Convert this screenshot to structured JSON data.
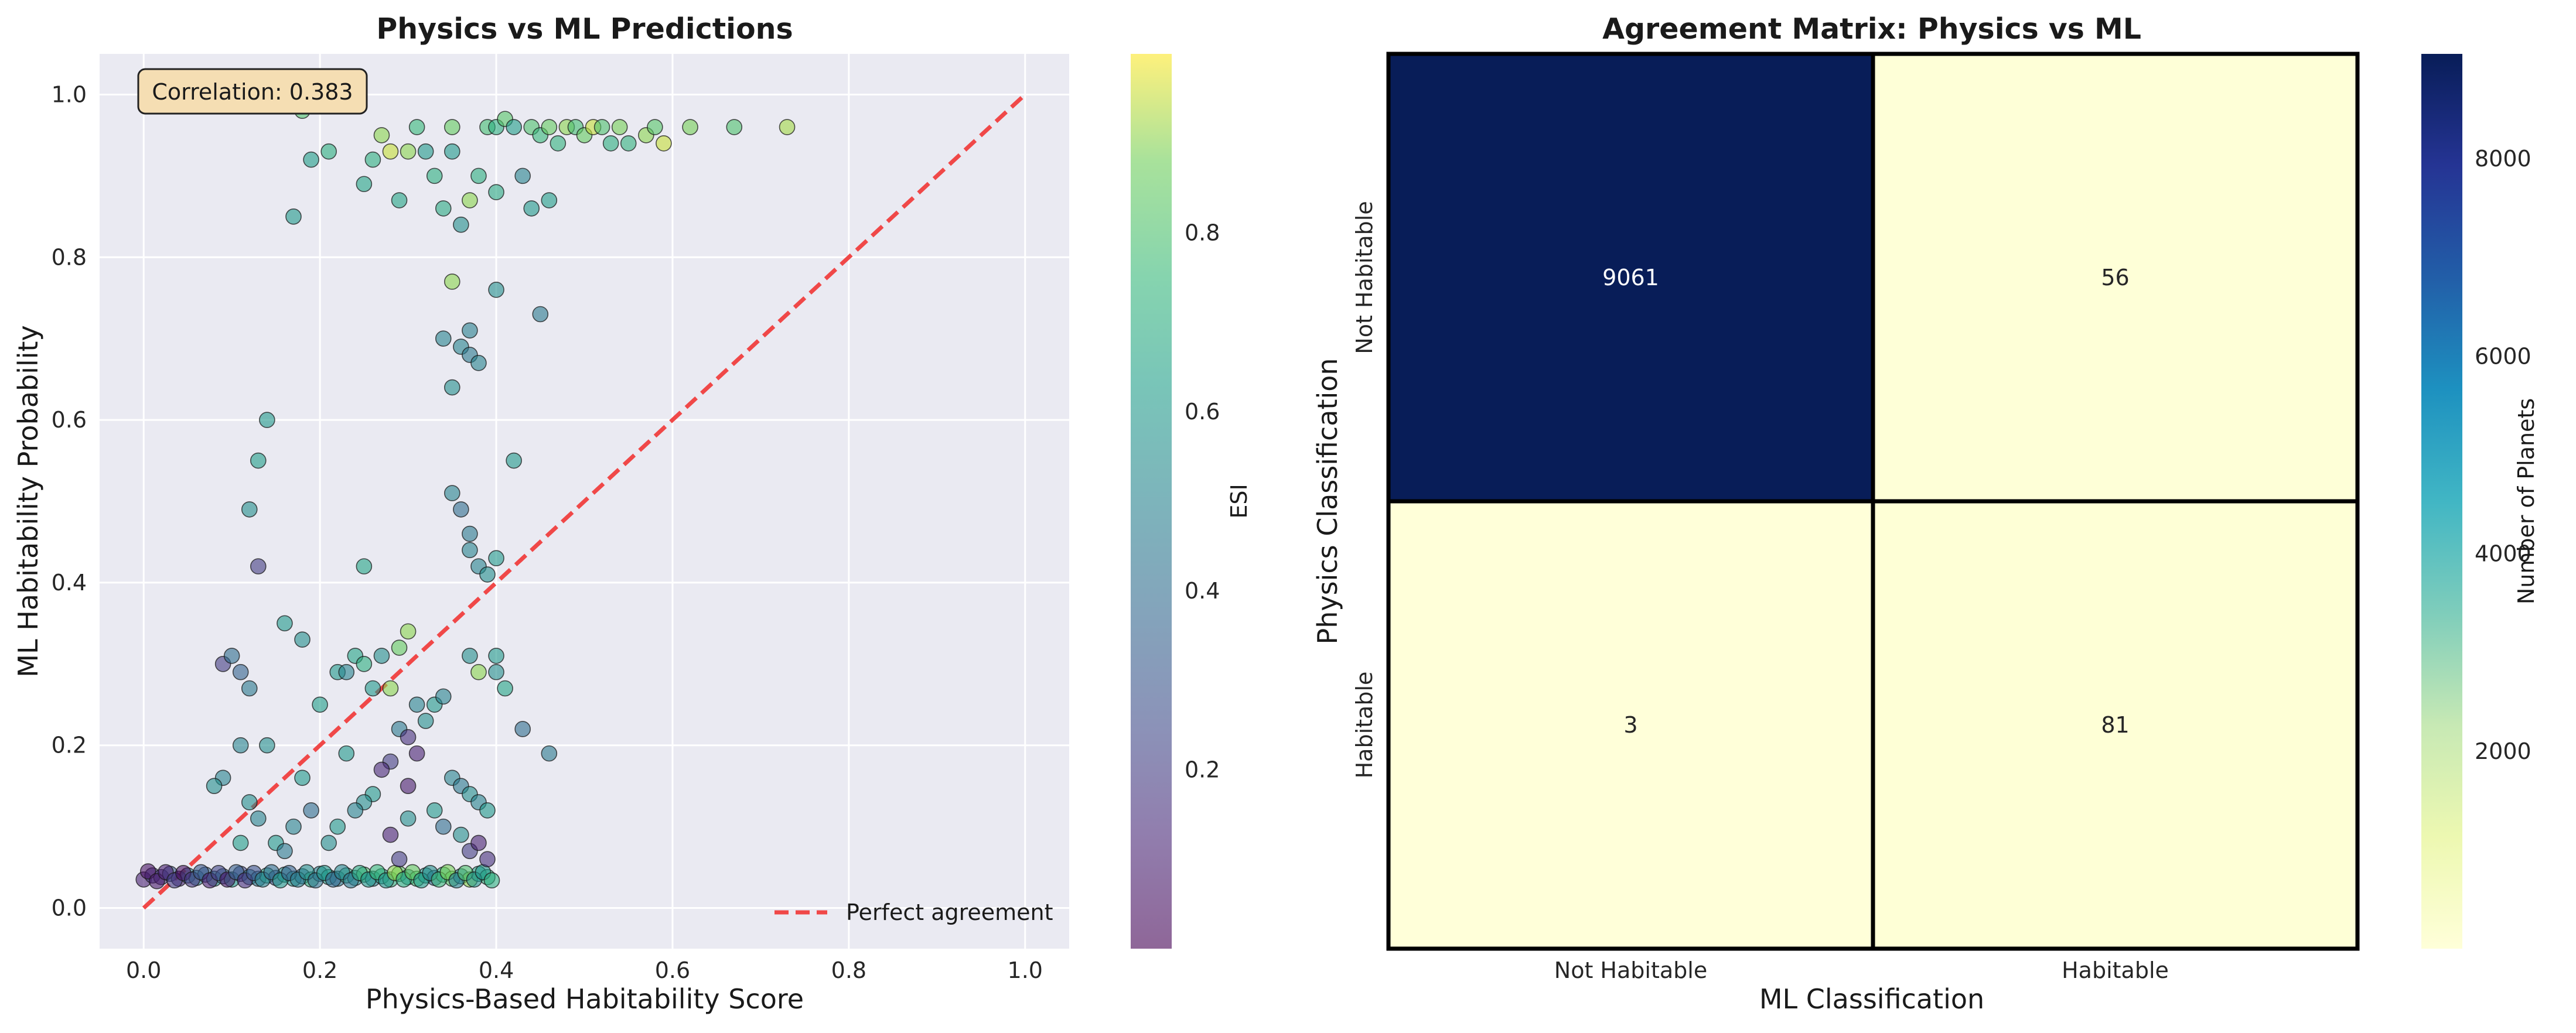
{
  "chart_data": [
    {
      "type": "scatter",
      "title": "Physics vs ML Predictions",
      "xlabel": "Physics-Based Habitability Score",
      "ylabel": "ML Habitability Probability",
      "xlim": [
        -0.05,
        1.05
      ],
      "ylim": [
        -0.05,
        1.05
      ],
      "xticks": [
        "0.0",
        "0.2",
        "0.4",
        "0.6",
        "0.8",
        "1.0"
      ],
      "yticks": [
        "0.0",
        "0.2",
        "0.4",
        "0.6",
        "0.8",
        "1.0"
      ],
      "grid": true,
      "annotation": "Correlation: 0.383",
      "legend": {
        "placement": "lower-right",
        "entries": [
          "Perfect agreement"
        ]
      },
      "reference_line": {
        "from": [
          0,
          0
        ],
        "to": [
          1,
          1
        ],
        "style": "dashed",
        "color": "#f04848"
      },
      "colorbar": {
        "label": "ESI",
        "colormap": "viridis",
        "range": [
          0.0,
          1.0
        ],
        "ticks": [
          "0.2",
          "0.4",
          "0.6",
          "0.8"
        ]
      },
      "points": [
        [
          0.0,
          0.035,
          0.1
        ],
        [
          0.01,
          0.04,
          0.2
        ],
        [
          0.02,
          0.038,
          0.15
        ],
        [
          0.03,
          0.042,
          0.3
        ],
        [
          0.04,
          0.036,
          0.12
        ],
        [
          0.05,
          0.04,
          0.45
        ],
        [
          0.06,
          0.037,
          0.5
        ],
        [
          0.07,
          0.041,
          0.35
        ],
        [
          0.08,
          0.036,
          0.55
        ],
        [
          0.09,
          0.039,
          0.4
        ],
        [
          0.1,
          0.035,
          0.6
        ],
        [
          0.11,
          0.042,
          0.25
        ],
        [
          0.12,
          0.038,
          0.5
        ],
        [
          0.13,
          0.036,
          0.45
        ],
        [
          0.14,
          0.04,
          0.65
        ],
        [
          0.15,
          0.037,
          0.3
        ],
        [
          0.16,
          0.041,
          0.55
        ],
        [
          0.17,
          0.036,
          0.6
        ],
        [
          0.18,
          0.039,
          0.4
        ],
        [
          0.19,
          0.035,
          0.7
        ],
        [
          0.2,
          0.042,
          0.5
        ],
        [
          0.21,
          0.038,
          0.62
        ],
        [
          0.22,
          0.036,
          0.45
        ],
        [
          0.23,
          0.04,
          0.7
        ],
        [
          0.24,
          0.037,
          0.55
        ],
        [
          0.25,
          0.041,
          0.8
        ],
        [
          0.26,
          0.036,
          0.5
        ],
        [
          0.27,
          0.039,
          0.65
        ],
        [
          0.28,
          0.035,
          0.72
        ],
        [
          0.29,
          0.042,
          0.85
        ],
        [
          0.3,
          0.038,
          0.55
        ],
        [
          0.31,
          0.036,
          0.78
        ],
        [
          0.32,
          0.04,
          0.6
        ],
        [
          0.33,
          0.037,
          0.4
        ],
        [
          0.34,
          0.041,
          0.7
        ],
        [
          0.35,
          0.036,
          0.82
        ],
        [
          0.36,
          0.039,
          0.5
        ],
        [
          0.37,
          0.035,
          0.9
        ],
        [
          0.38,
          0.042,
          0.65
        ],
        [
          0.39,
          0.038,
          0.72
        ],
        [
          0.005,
          0.045,
          0.05
        ],
        [
          0.015,
          0.033,
          0.08
        ],
        [
          0.025,
          0.044,
          0.1
        ],
        [
          0.035,
          0.034,
          0.2
        ],
        [
          0.045,
          0.043,
          0.05
        ],
        [
          0.055,
          0.035,
          0.18
        ],
        [
          0.065,
          0.044,
          0.3
        ],
        [
          0.075,
          0.034,
          0.1
        ],
        [
          0.085,
          0.043,
          0.22
        ],
        [
          0.095,
          0.035,
          0.08
        ],
        [
          0.105,
          0.044,
          0.33
        ],
        [
          0.115,
          0.034,
          0.15
        ],
        [
          0.125,
          0.043,
          0.28
        ],
        [
          0.135,
          0.035,
          0.5
        ],
        [
          0.145,
          0.044,
          0.4
        ],
        [
          0.155,
          0.034,
          0.6
        ],
        [
          0.165,
          0.043,
          0.35
        ],
        [
          0.175,
          0.035,
          0.48
        ],
        [
          0.185,
          0.044,
          0.55
        ],
        [
          0.195,
          0.034,
          0.42
        ],
        [
          0.205,
          0.043,
          0.6
        ],
        [
          0.215,
          0.035,
          0.38
        ],
        [
          0.225,
          0.044,
          0.52
        ],
        [
          0.235,
          0.034,
          0.45
        ],
        [
          0.245,
          0.043,
          0.68
        ],
        [
          0.255,
          0.035,
          0.6
        ],
        [
          0.265,
          0.044,
          0.75
        ],
        [
          0.275,
          0.034,
          0.58
        ],
        [
          0.285,
          0.043,
          0.9
        ],
        [
          0.295,
          0.035,
          0.7
        ],
        [
          0.305,
          0.044,
          0.85
        ],
        [
          0.315,
          0.034,
          0.62
        ],
        [
          0.325,
          0.043,
          0.55
        ],
        [
          0.335,
          0.035,
          0.75
        ],
        [
          0.345,
          0.044,
          0.88
        ],
        [
          0.355,
          0.034,
          0.5
        ],
        [
          0.365,
          0.043,
          0.8
        ],
        [
          0.375,
          0.035,
          0.58
        ],
        [
          0.385,
          0.044,
          0.6
        ],
        [
          0.395,
          0.034,
          0.7
        ],
        [
          0.17,
          0.85,
          0.6
        ],
        [
          0.19,
          0.92,
          0.62
        ],
        [
          0.21,
          0.93,
          0.7
        ],
        [
          0.18,
          0.98,
          0.8
        ],
        [
          0.25,
          0.89,
          0.65
        ],
        [
          0.26,
          0.92,
          0.7
        ],
        [
          0.27,
          0.95,
          0.9
        ],
        [
          0.28,
          0.93,
          0.95
        ],
        [
          0.29,
          0.87,
          0.65
        ],
        [
          0.3,
          0.93,
          0.9
        ],
        [
          0.31,
          0.96,
          0.75
        ],
        [
          0.32,
          0.93,
          0.6
        ],
        [
          0.33,
          0.9,
          0.7
        ],
        [
          0.34,
          0.86,
          0.68
        ],
        [
          0.35,
          0.96,
          0.85
        ],
        [
          0.36,
          0.84,
          0.55
        ],
        [
          0.37,
          0.87,
          0.9
        ],
        [
          0.38,
          0.9,
          0.7
        ],
        [
          0.39,
          0.96,
          0.78
        ],
        [
          0.4,
          0.96,
          0.7
        ],
        [
          0.41,
          0.97,
          0.82
        ],
        [
          0.42,
          0.96,
          0.62
        ],
        [
          0.43,
          0.9,
          0.5
        ],
        [
          0.44,
          0.96,
          0.8
        ],
        [
          0.45,
          0.95,
          0.75
        ],
        [
          0.46,
          0.96,
          0.85
        ],
        [
          0.47,
          0.94,
          0.72
        ],
        [
          0.48,
          0.96,
          0.9
        ],
        [
          0.49,
          0.96,
          0.78
        ],
        [
          0.5,
          0.95,
          0.85
        ],
        [
          0.51,
          0.96,
          0.95
        ],
        [
          0.52,
          0.96,
          0.8
        ],
        [
          0.53,
          0.94,
          0.7
        ],
        [
          0.54,
          0.96,
          0.88
        ],
        [
          0.55,
          0.94,
          0.72
        ],
        [
          0.57,
          0.95,
          0.9
        ],
        [
          0.58,
          0.96,
          0.82
        ],
        [
          0.59,
          0.94,
          0.95
        ],
        [
          0.62,
          0.96,
          0.88
        ],
        [
          0.67,
          0.96,
          0.8
        ],
        [
          0.73,
          0.96,
          0.92
        ],
        [
          0.44,
          0.86,
          0.6
        ],
        [
          0.46,
          0.87,
          0.62
        ],
        [
          0.4,
          0.88,
          0.68
        ],
        [
          0.35,
          0.93,
          0.6
        ],
        [
          0.14,
          0.6,
          0.6
        ],
        [
          0.13,
          0.55,
          0.62
        ],
        [
          0.12,
          0.49,
          0.55
        ],
        [
          0.13,
          0.42,
          0.2
        ],
        [
          0.34,
          0.7,
          0.5
        ],
        [
          0.35,
          0.64,
          0.55
        ],
        [
          0.36,
          0.69,
          0.5
        ],
        [
          0.37,
          0.71,
          0.48
        ],
        [
          0.37,
          0.68,
          0.45
        ],
        [
          0.38,
          0.67,
          0.5
        ],
        [
          0.4,
          0.76,
          0.55
        ],
        [
          0.45,
          0.73,
          0.45
        ],
        [
          0.35,
          0.77,
          0.9
        ],
        [
          0.42,
          0.55,
          0.6
        ],
        [
          0.35,
          0.51,
          0.5
        ],
        [
          0.36,
          0.49,
          0.4
        ],
        [
          0.37,
          0.46,
          0.45
        ],
        [
          0.37,
          0.44,
          0.5
        ],
        [
          0.38,
          0.42,
          0.5
        ],
        [
          0.39,
          0.41,
          0.55
        ],
        [
          0.4,
          0.43,
          0.6
        ],
        [
          0.25,
          0.42,
          0.65
        ],
        [
          0.4,
          0.31,
          0.6
        ],
        [
          0.4,
          0.29,
          0.55
        ],
        [
          0.41,
          0.27,
          0.65
        ],
        [
          0.38,
          0.29,
          0.9
        ],
        [
          0.37,
          0.31,
          0.55
        ],
        [
          0.16,
          0.35,
          0.6
        ],
        [
          0.18,
          0.33,
          0.55
        ],
        [
          0.22,
          0.29,
          0.6
        ],
        [
          0.23,
          0.29,
          0.5
        ],
        [
          0.24,
          0.31,
          0.65
        ],
        [
          0.25,
          0.3,
          0.7
        ],
        [
          0.26,
          0.27,
          0.6
        ],
        [
          0.27,
          0.31,
          0.55
        ],
        [
          0.28,
          0.27,
          0.9
        ],
        [
          0.29,
          0.32,
          0.85
        ],
        [
          0.3,
          0.34,
          0.9
        ],
        [
          0.31,
          0.25,
          0.5
        ],
        [
          0.32,
          0.23,
          0.55
        ],
        [
          0.33,
          0.25,
          0.6
        ],
        [
          0.34,
          0.26,
          0.5
        ],
        [
          0.29,
          0.22,
          0.45
        ],
        [
          0.3,
          0.21,
          0.15
        ],
        [
          0.31,
          0.19,
          0.1
        ],
        [
          0.28,
          0.18,
          0.2
        ],
        [
          0.27,
          0.17,
          0.12
        ],
        [
          0.3,
          0.15,
          0.08
        ],
        [
          0.26,
          0.14,
          0.6
        ],
        [
          0.25,
          0.13,
          0.55
        ],
        [
          0.24,
          0.12,
          0.5
        ],
        [
          0.22,
          0.1,
          0.6
        ],
        [
          0.21,
          0.08,
          0.55
        ],
        [
          0.28,
          0.09,
          0.1
        ],
        [
          0.29,
          0.06,
          0.2
        ],
        [
          0.3,
          0.11,
          0.55
        ],
        [
          0.33,
          0.12,
          0.6
        ],
        [
          0.34,
          0.1,
          0.4
        ],
        [
          0.35,
          0.16,
          0.5
        ],
        [
          0.36,
          0.15,
          0.45
        ],
        [
          0.37,
          0.14,
          0.55
        ],
        [
          0.38,
          0.13,
          0.5
        ],
        [
          0.39,
          0.12,
          0.6
        ],
        [
          0.36,
          0.09,
          0.55
        ],
        [
          0.37,
          0.07,
          0.2
        ],
        [
          0.38,
          0.08,
          0.1
        ],
        [
          0.39,
          0.06,
          0.15
        ],
        [
          0.09,
          0.3,
          0.2
        ],
        [
          0.1,
          0.31,
          0.4
        ],
        [
          0.11,
          0.29,
          0.35
        ],
        [
          0.12,
          0.27,
          0.45
        ],
        [
          0.11,
          0.2,
          0.5
        ],
        [
          0.09,
          0.16,
          0.5
        ],
        [
          0.08,
          0.15,
          0.55
        ],
        [
          0.12,
          0.13,
          0.55
        ],
        [
          0.13,
          0.11,
          0.5
        ],
        [
          0.15,
          0.08,
          0.6
        ],
        [
          0.19,
          0.12,
          0.4
        ],
        [
          0.18,
          0.16,
          0.6
        ],
        [
          0.2,
          0.25,
          0.62
        ],
        [
          0.43,
          0.22,
          0.4
        ],
        [
          0.46,
          0.19,
          0.45
        ],
        [
          0.11,
          0.08,
          0.62
        ],
        [
          0.14,
          0.2,
          0.55
        ],
        [
          0.16,
          0.07,
          0.45
        ],
        [
          0.17,
          0.1,
          0.5
        ],
        [
          0.23,
          0.19,
          0.6
        ]
      ]
    },
    {
      "type": "heatmap",
      "title": "Agreement Matrix: Physics vs ML",
      "xlabel": "ML Classification",
      "ylabel": "Physics Classification",
      "x_categories": [
        "Not Habitable",
        "Habitable"
      ],
      "y_categories": [
        "Not Habitable",
        "Habitable"
      ],
      "values": [
        [
          9061,
          56
        ],
        [
          3,
          81
        ]
      ],
      "colorbar": {
        "label": "Number of Planets",
        "colormap": "YlGnBu",
        "range": [
          3,
          9061
        ],
        "ticks": [
          "2000",
          "4000",
          "6000",
          "8000"
        ]
      }
    }
  ]
}
